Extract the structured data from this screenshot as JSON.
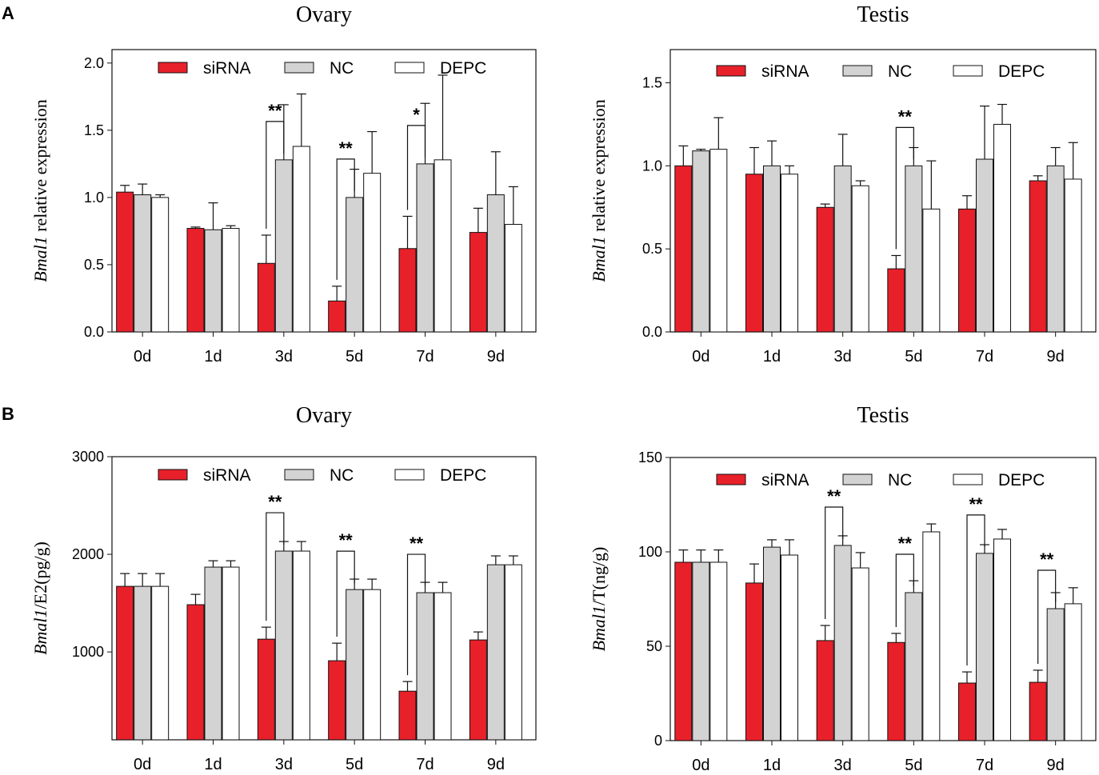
{
  "panel_letters": [
    "A",
    "B"
  ],
  "colors": {
    "siRNA": "#e8202a",
    "NC": "#d3d3d3",
    "DEPC": "#ffffff",
    "stroke": "#111111"
  },
  "chart_data": [
    {
      "type": "bar",
      "panel": "A",
      "title": "Ovary",
      "ylabel_italic": "Bmal1",
      "ylabel_rest": " relative expression",
      "ylim": [
        0,
        2.1
      ],
      "yticks": [
        "0.0",
        "0.5",
        "1.0",
        "1.5",
        "2.0"
      ],
      "ytick_values": [
        0,
        0.5,
        1.0,
        1.5,
        2.0
      ],
      "categories": [
        "0d",
        "1d",
        "3d",
        "5d",
        "7d",
        "9d"
      ],
      "legend": [
        "siRNA",
        "NC",
        "DEPC"
      ],
      "series": [
        {
          "name": "siRNA",
          "values": [
            1.04,
            0.77,
            0.51,
            0.23,
            0.62,
            0.74
          ],
          "errors": [
            0.05,
            0.01,
            0.21,
            0.11,
            0.24,
            0.18
          ]
        },
        {
          "name": "NC",
          "values": [
            1.02,
            0.76,
            1.28,
            1.0,
            1.25,
            1.02
          ],
          "errors": [
            0.08,
            0.2,
            0.41,
            0.21,
            0.45,
            0.32
          ]
        },
        {
          "name": "DEPC",
          "values": [
            1.0,
            0.77,
            1.38,
            1.18,
            1.28,
            0.8
          ],
          "errors": [
            0.02,
            0.02,
            0.39,
            0.31,
            0.63,
            0.28
          ]
        }
      ],
      "significance": [
        {
          "category": "3d",
          "label": "**"
        },
        {
          "category": "5d",
          "label": "**"
        },
        {
          "category": "7d",
          "label": "*"
        }
      ]
    },
    {
      "type": "bar",
      "panel": "A",
      "title": "Testis",
      "ylabel_italic": "Bmal1",
      "ylabel_rest": " relative expression",
      "ylim": [
        0,
        1.7
      ],
      "yticks": [
        "0.0",
        "0.5",
        "1.0",
        "1.5"
      ],
      "ytick_values": [
        0,
        0.5,
        1.0,
        1.5
      ],
      "categories": [
        "0d",
        "1d",
        "3d",
        "5d",
        "7d",
        "9d"
      ],
      "legend": [
        "siRNA",
        "NC",
        "DEPC"
      ],
      "series": [
        {
          "name": "siRNA",
          "values": [
            1.0,
            0.95,
            0.75,
            0.38,
            0.74,
            0.91
          ],
          "errors": [
            0.12,
            0.16,
            0.02,
            0.08,
            0.08,
            0.03
          ]
        },
        {
          "name": "NC",
          "values": [
            1.09,
            1.0,
            1.0,
            1.0,
            1.04,
            1.0
          ],
          "errors": [
            0.01,
            0.15,
            0.19,
            0.11,
            0.32,
            0.11
          ]
        },
        {
          "name": "DEPC",
          "values": [
            1.1,
            0.95,
            0.88,
            0.74,
            1.25,
            0.92
          ],
          "errors": [
            0.19,
            0.05,
            0.03,
            0.29,
            0.12,
            0.22
          ]
        }
      ],
      "significance": [
        {
          "category": "5d",
          "label": "**"
        }
      ]
    },
    {
      "type": "bar",
      "panel": "B",
      "title": "Ovary",
      "ylabel_italic": "Bmal1",
      "ylabel_rest": "/E2(pg/g)",
      "ylim": [
        100,
        3000
      ],
      "yticks": [
        "1000",
        "2000",
        "3000"
      ],
      "ytick_values": [
        1000,
        2000,
        3000
      ],
      "categories": [
        "0d",
        "1d",
        "3d",
        "5d",
        "7d",
        "9d"
      ],
      "legend": [
        "siRNA",
        "NC",
        "DEPC"
      ],
      "series": [
        {
          "name": "siRNA",
          "values": [
            1672,
            1484,
            1131,
            910,
            598,
            1123
          ],
          "errors": [
            131,
            106,
            123,
            180,
            99,
            82
          ]
        },
        {
          "name": "NC",
          "values": [
            1672,
            1869,
            2033,
            1639,
            1607,
            1893
          ],
          "errors": [
            131,
            65,
            98,
            107,
            106,
            91
          ]
        },
        {
          "name": "DEPC",
          "values": [
            1672,
            1869,
            2033,
            1639,
            1607,
            1893
          ],
          "errors": [
            131,
            65,
            98,
            107,
            106,
            91
          ]
        }
      ],
      "significance": [
        {
          "category": "3d",
          "label": "**"
        },
        {
          "category": "5d",
          "label": "**"
        },
        {
          "category": "7d",
          "label": "**"
        }
      ]
    },
    {
      "type": "bar",
      "panel": "B",
      "title": "Testis",
      "ylabel_italic": "Bmal1",
      "ylabel_rest": "/T(ng/g)",
      "ylim": [
        0,
        150
      ],
      "yticks": [
        "0",
        "50",
        "100",
        "150"
      ],
      "ytick_values": [
        0,
        50,
        100,
        150
      ],
      "categories": [
        "0d",
        "1d",
        "3d",
        "5d",
        "7d",
        "9d"
      ],
      "legend": [
        "siRNA",
        "NC",
        "DEPC"
      ],
      "series": [
        {
          "name": "siRNA",
          "values": [
            94.5,
            83.5,
            53,
            52,
            30.5,
            30.9
          ],
          "errors": [
            6.5,
            10.1,
            8,
            4.8,
            5.9,
            6.4
          ]
        },
        {
          "name": "NC",
          "values": [
            94.5,
            102.5,
            103.4,
            78.4,
            99.2,
            69.9
          ],
          "errors": [
            6.5,
            3.9,
            5.1,
            6.3,
            4.6,
            8.5
          ]
        },
        {
          "name": "DEPC",
          "values": [
            94.5,
            98.3,
            91.5,
            110.6,
            106.8,
            72.5
          ],
          "errors": [
            6.5,
            8.1,
            8.1,
            4.2,
            5.1,
            8.5
          ]
        }
      ],
      "significance": [
        {
          "category": "3d",
          "label": "**"
        },
        {
          "category": "5d",
          "label": "**"
        },
        {
          "category": "7d",
          "label": "**"
        },
        {
          "category": "9d",
          "label": "**"
        }
      ]
    }
  ]
}
